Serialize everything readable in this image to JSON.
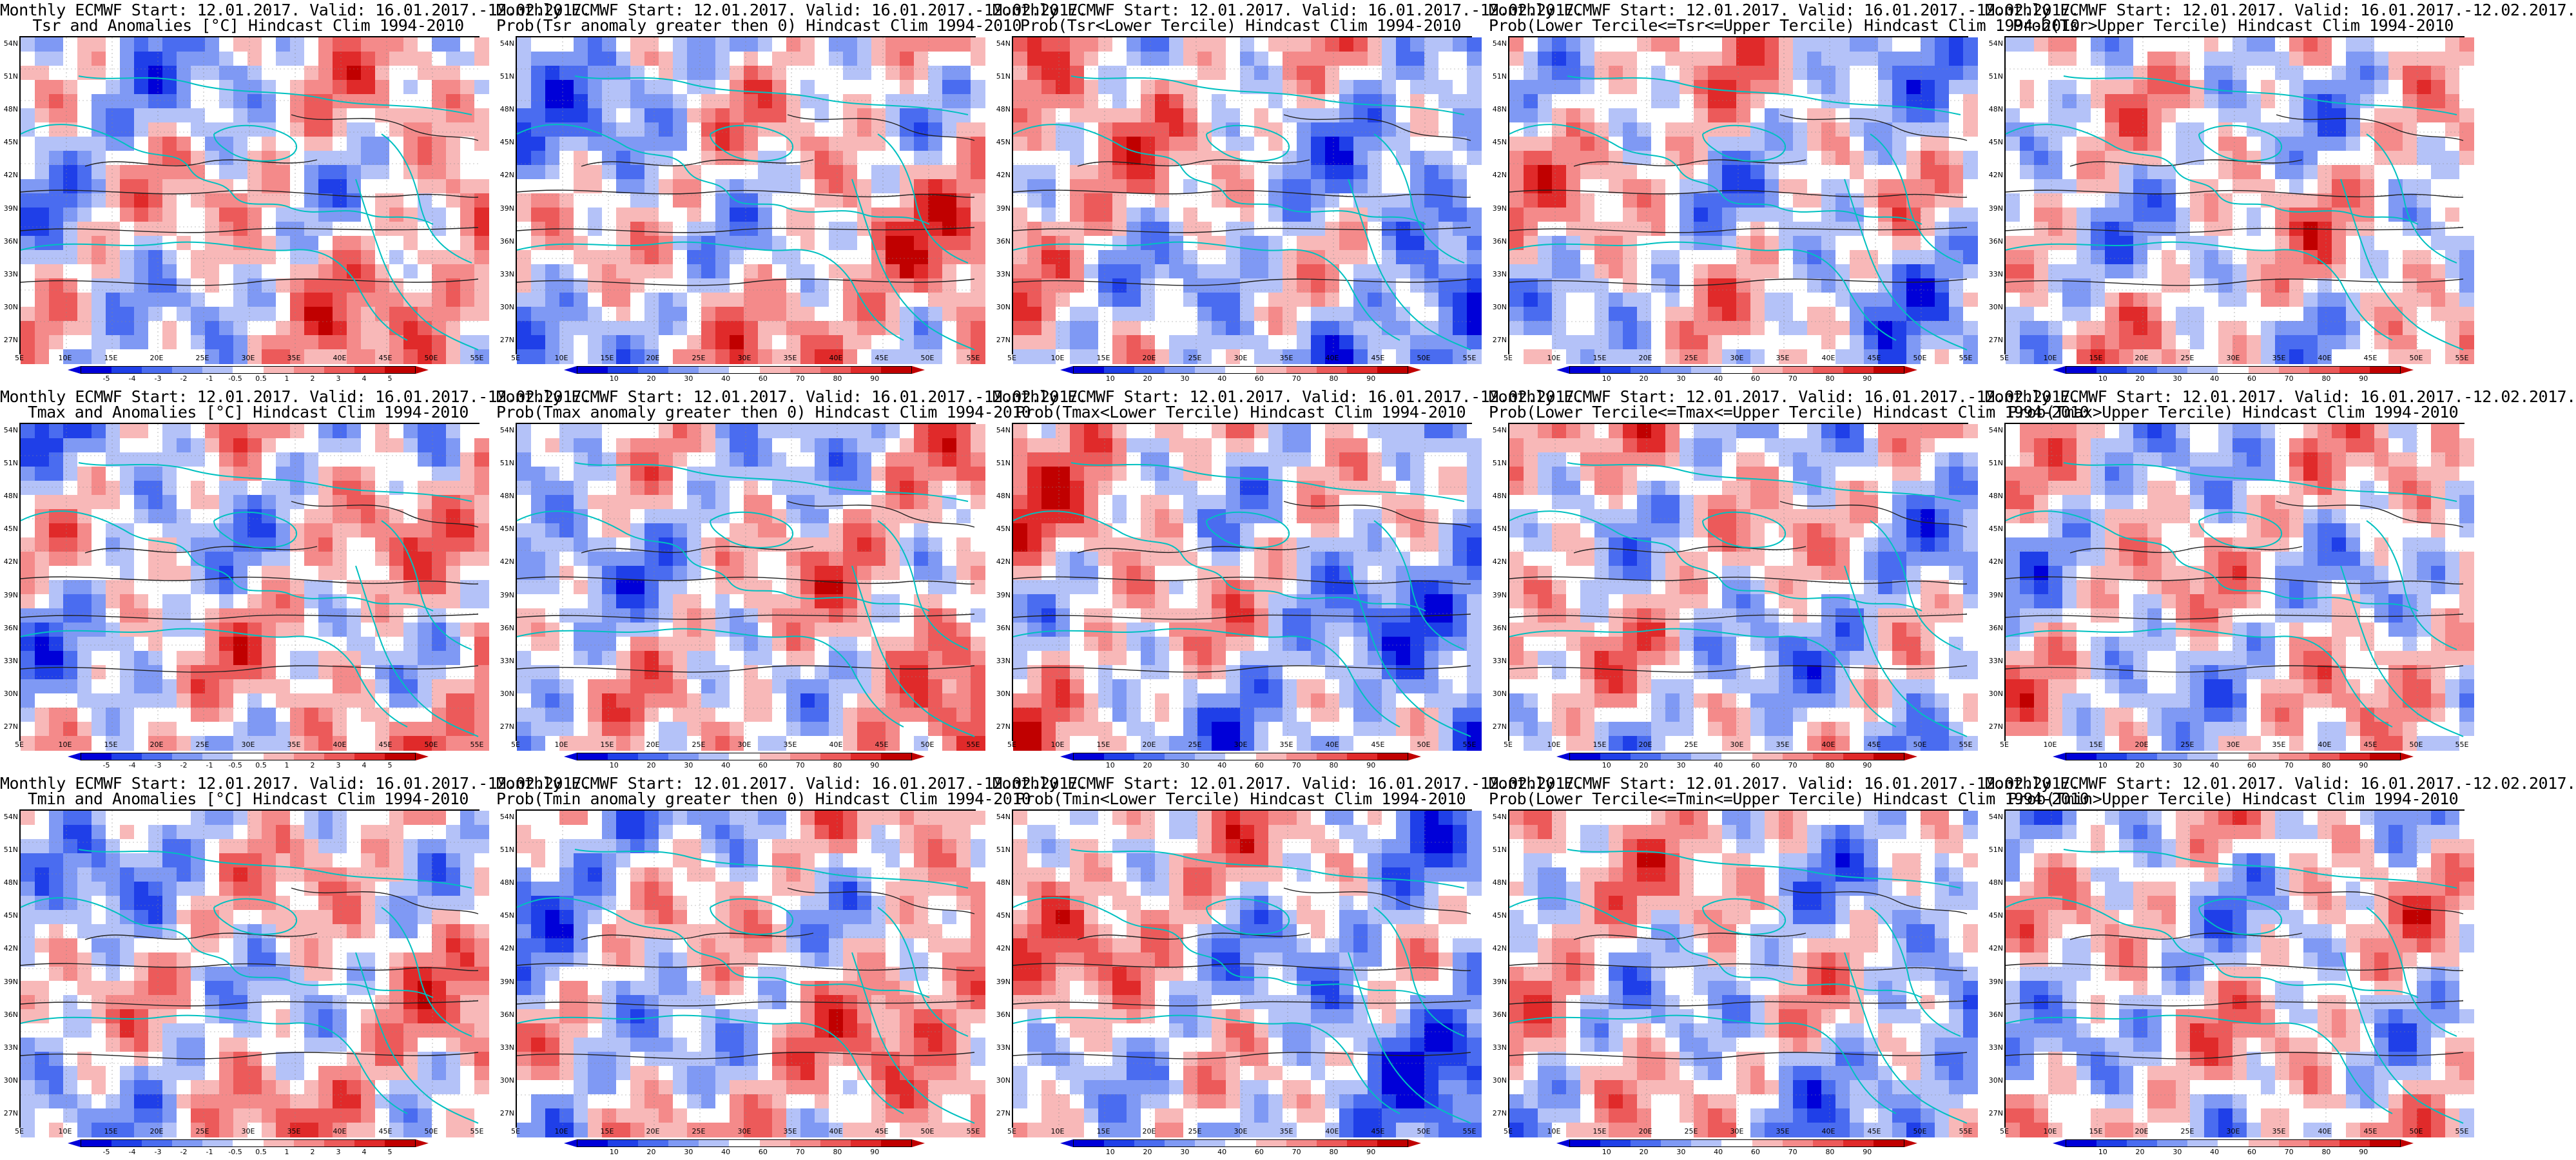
{
  "lat_labels": [
    "54N",
    "51N",
    "48N",
    "45N",
    "42N",
    "39N",
    "36N",
    "33N",
    "30N",
    "27N"
  ],
  "lon_labels": [
    "5E",
    "10E",
    "15E",
    "20E",
    "25E",
    "30E",
    "35E",
    "40E",
    "45E",
    "50E",
    "55E"
  ],
  "colors": {
    "scale": [
      "#0000d8",
      "#1f3fe8",
      "#4a6cf0",
      "#7f99f4",
      "#b4c2f8",
      "#ffffff",
      "#f8b8b8",
      "#f48a8a",
      "#ec5a5a",
      "#e02a2a",
      "#c00000"
    ],
    "coast": "#00c0c0",
    "contour": "#222222"
  },
  "scales": {
    "anom": [
      "-5",
      "-4",
      "-3",
      "-2",
      "-1",
      "-0.5",
      "0.5",
      "1",
      "2",
      "3",
      "4",
      "5"
    ],
    "prob": [
      "10",
      "20",
      "30",
      "40",
      "60",
      "70",
      "80",
      "90"
    ]
  },
  "panels": [
    {
      "title1": "Monthly ECMWF Start: 12.01.2017. Valid: 16.01.2017.-12.02.2017.",
      "title2": "Tsr and Anomalies [°C] Hindcast Clim 1994-2010",
      "kind": "anom",
      "bias": 0.35
    },
    {
      "title1": "Monthly ECMWF Start: 12.01.2017. Valid: 16.01.2017.-12.02.2017.",
      "title2": "Prob(Tsr anomaly greater then 0) Hindcast Clim 1994-2010",
      "kind": "prob",
      "bias": 0.45
    },
    {
      "title1": "Monthly ECMWF Start: 12.01.2017. Valid: 16.01.2017.-12.02.2017.",
      "title2": "Prob(Tsr<Lower Tercile) Hindcast Clim 1994-2010",
      "kind": "prob",
      "bias": -0.55
    },
    {
      "title1": "Monthly ECMWF Start: 12.01.2017. Valid: 16.01.2017.-12.02.2017.",
      "title2": "Prob(Lower Tercile<=Tsr<=Upper Tercile) Hindcast Clim 1994-2010",
      "kind": "prob",
      "bias": -0.25
    },
    {
      "title1": "Monthly ECMWF Start: 12.01.2017. Valid: 16.01.2017.-12.02.2017.",
      "title2": "Prob(Tsr>Upper Tercile) Hindcast Clim 1994-2010",
      "kind": "prob",
      "bias": 0.1
    },
    {
      "title1": "Monthly ECMWF Start: 12.01.2017. Valid: 16.01.2017.-12.02.2017.",
      "title2": "Tmax and Anomalies [°C] Hindcast Clim 1994-2010",
      "kind": "anom",
      "bias": 0.3
    },
    {
      "title1": "Monthly ECMWF Start: 12.01.2017. Valid: 16.01.2017.-12.02.2017.",
      "title2": "Prob(Tmax anomaly greater then 0) Hindcast Clim 1994-2010",
      "kind": "prob",
      "bias": 0.4
    },
    {
      "title1": "Monthly ECMWF Start: 12.01.2017. Valid: 16.01.2017.-12.02.2017.",
      "title2": "Prob(Tmax<Lower Tercile) Hindcast Clim 1994-2010",
      "kind": "prob",
      "bias": -0.55
    },
    {
      "title1": "Monthly ECMWF Start: 12.01.2017. Valid: 16.01.2017.-12.02.2017.",
      "title2": "Prob(Lower Tercile<=Tmax<=Upper Tercile) Hindcast Clim 1994-2010",
      "kind": "prob",
      "bias": -0.25
    },
    {
      "title1": "Monthly ECMWF Start: 12.01.2017. Valid: 16.01.2017.-12.02.2017.",
      "title2": "Prob(Tmax>Upper Tercile) Hindcast Clim 1994-2010",
      "kind": "prob",
      "bias": 0.05
    },
    {
      "title1": "Monthly ECMWF Start: 12.01.2017. Valid: 16.01.2017.-12.02.2017.",
      "title2": "Tmin and Anomalies [°C] Hindcast Clim 1994-2010",
      "kind": "anom",
      "bias": 0.3
    },
    {
      "title1": "Monthly ECMWF Start: 12.01.2017. Valid: 16.01.2017.-12.02.2017.",
      "title2": "Prob(Tmin anomaly greater then 0) Hindcast Clim 1994-2010",
      "kind": "prob",
      "bias": 0.45
    },
    {
      "title1": "Monthly ECMWF Start: 12.01.2017. Valid: 16.01.2017.-12.02.2017.",
      "title2": "Prob(Tmin<Lower Tercile) Hindcast Clim 1994-2010",
      "kind": "prob",
      "bias": -0.6
    },
    {
      "title1": "Monthly ECMWF Start: 12.01.2017. Valid: 16.01.2017.-12.02.2017.",
      "title2": "Prob(Lower Tercile<=Tmin<=Upper Tercile) Hindcast Clim 1994-2010",
      "kind": "prob",
      "bias": -0.3
    },
    {
      "title1": "Monthly ECMWF Start: 12.01.2017. Valid: 16.01.2017.-12.02.2017.",
      "title2": "Prob(Tmin>Upper Tercile) Hindcast Clim 1994-2010",
      "kind": "prob",
      "bias": 0.1
    }
  ]
}
